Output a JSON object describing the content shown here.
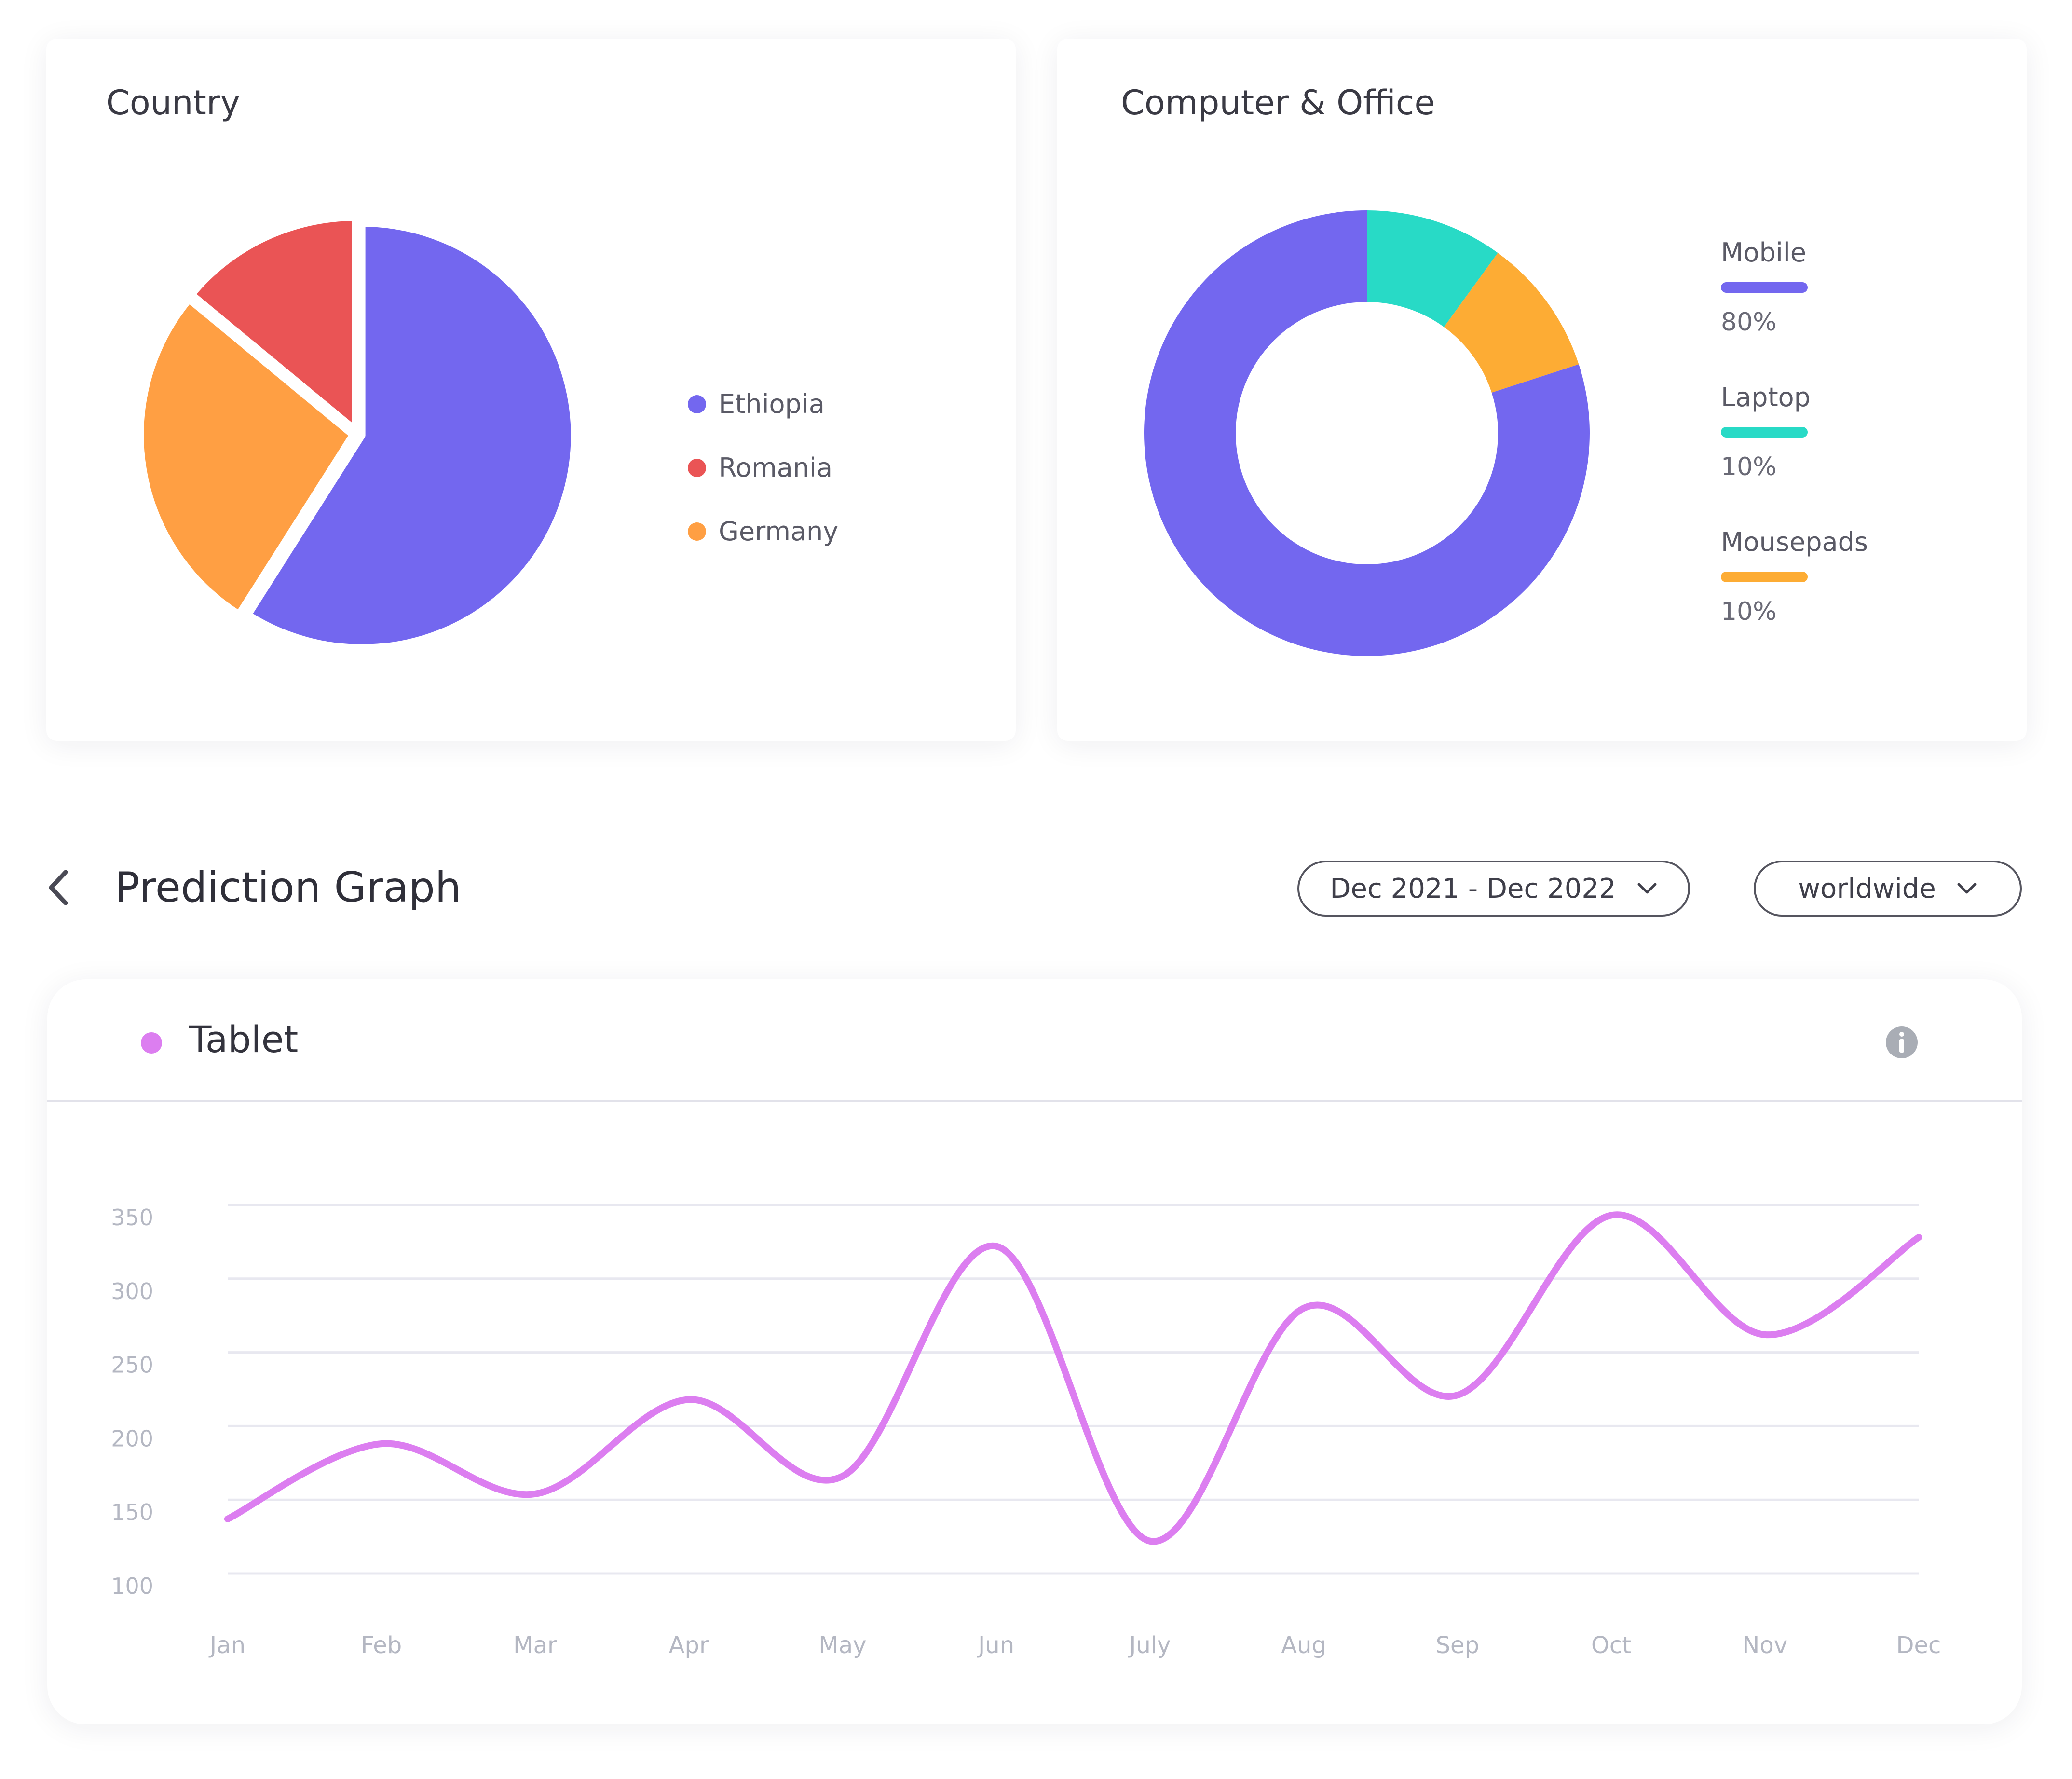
{
  "country_card": {
    "title": "Country",
    "legend": [
      {
        "label": "Ethiopia",
        "color": "#7367ef"
      },
      {
        "label": "Romania",
        "color": "#ea5455"
      },
      {
        "label": "Germany",
        "color": "#ff9f43"
      }
    ]
  },
  "computer_card": {
    "title": "Computer & Office",
    "legend": [
      {
        "label": "Mobile",
        "value": "80%",
        "color": "#7367ef"
      },
      {
        "label": "Laptop",
        "value": "10%",
        "color": "#28dac6"
      },
      {
        "label": "Mousepads",
        "value": "10%",
        "color": "#fdac34"
      }
    ]
  },
  "prediction": {
    "title": "Prediction Graph",
    "date_range": "Dec 2021 - Dec 2022",
    "region": "worldwide",
    "series_name": "Tablet",
    "series_color": "#dc7ef0"
  },
  "chart_data": [
    {
      "type": "pie",
      "title": "Country",
      "labels": [
        "Ethiopia",
        "Germany",
        "Romania"
      ],
      "values": [
        59,
        27,
        14
      ],
      "colors": [
        "#7367ef",
        "#ff9f43",
        "#ea5455"
      ]
    },
    {
      "type": "pie",
      "variant": "donut",
      "title": "Computer & Office",
      "labels": [
        "Mobile",
        "Laptop",
        "Mousepads"
      ],
      "values": [
        80,
        10,
        10
      ],
      "colors": [
        "#7367ef",
        "#28dac6",
        "#fdac34"
      ]
    },
    {
      "type": "line",
      "title": "Prediction Graph",
      "categories": [
        "Jan",
        "Feb",
        "Mar",
        "Apr",
        "May",
        "Jun",
        "July",
        "Aug",
        "Sep",
        "Oct",
        "Nov",
        "Dec"
      ],
      "series": [
        {
          "name": "Tablet",
          "color": "#dc7ef0",
          "values": [
            137,
            188,
            154,
            218,
            166,
            322,
            122,
            280,
            221,
            343,
            262,
            328
          ]
        }
      ],
      "yticks": [
        100,
        150,
        200,
        250,
        300,
        350
      ],
      "ylim": [
        100,
        350
      ],
      "grid": true
    }
  ]
}
